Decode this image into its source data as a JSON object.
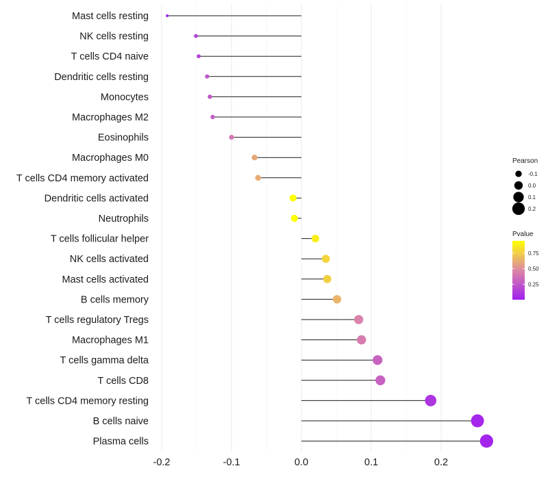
{
  "chart_data": {
    "type": "lollipop",
    "title": "",
    "xlabel": "",
    "ylabel": "",
    "xlim": [
      -0.2,
      0.27
    ],
    "x_ticks": [
      -0.2,
      -0.1,
      0.0,
      0.1,
      0.2
    ],
    "x_tick_labels": [
      "-0.2",
      "-0.1",
      "0.0",
      "0.1",
      "0.2"
    ],
    "grid": true,
    "categories": [
      "Mast cells resting",
      "NK cells resting",
      "T cells CD4 naive",
      "Dendritic cells resting",
      "Monocytes",
      "Macrophages M2",
      "Eosinophils",
      "Macrophages M0",
      "T cells CD4 memory activated",
      "Dendritic cells activated",
      "Neutrophils",
      "T cells follicular helper",
      "NK cells activated",
      "Mast cells activated",
      "B cells memory",
      "T cells regulatory  Tregs",
      "Macrophages M1",
      "T cells gamma delta",
      "T cells CD8",
      "T cells CD4 memory resting",
      "B cells naive",
      "Plasma cells"
    ],
    "values": [
      -0.192,
      -0.151,
      -0.147,
      -0.135,
      -0.131,
      -0.127,
      -0.1,
      -0.067,
      -0.062,
      -0.012,
      -0.01,
      0.02,
      0.035,
      0.037,
      0.051,
      0.082,
      0.086,
      0.109,
      0.113,
      0.185,
      0.252,
      0.265
    ],
    "pvalues": [
      0.05,
      0.15,
      0.15,
      0.25,
      0.25,
      0.28,
      0.4,
      0.6,
      0.62,
      0.95,
      0.95,
      0.88,
      0.78,
      0.76,
      0.65,
      0.45,
      0.42,
      0.3,
      0.3,
      0.1,
      0.03,
      0.02
    ],
    "legend": {
      "size_title": "Pearson",
      "size_entries": [
        "-0.1",
        "0.0",
        "0.1",
        "0.2"
      ],
      "size_values": [
        -0.1,
        0.0,
        0.1,
        0.2
      ],
      "color_title": "Pvalue",
      "color_ticks": [
        "0.75",
        "0.50",
        "0.25"
      ],
      "color_tick_values": [
        0.75,
        0.5,
        0.25
      ],
      "color_range": [
        0.0,
        0.95
      ],
      "color_low": "#a020f0",
      "color_mid": "#dd88a6",
      "color_high": "#ffff00",
      "position": "right"
    }
  }
}
